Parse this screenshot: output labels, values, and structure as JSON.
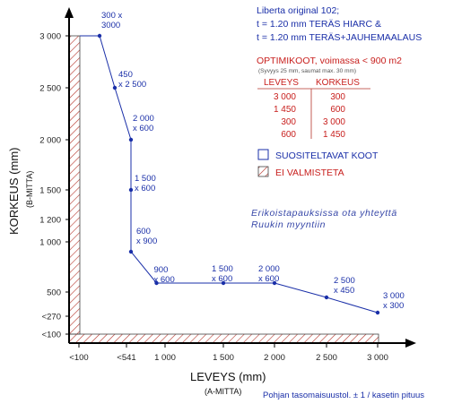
{
  "chart_data": {
    "type": "line",
    "xlabel": "LEVEYS (mm)",
    "xlabel_sub": "(A-MITTA)",
    "ylabel": "KORKEUS (mm)",
    "ylabel_sub": "(B-MITTA)",
    "x_ticks": [
      "<100",
      "<541",
      "1 000",
      "1 500",
      "2 000",
      "2 500",
      "3 000"
    ],
    "y_ticks": [
      "3 000",
      "2 500",
      "2 000",
      "1 500",
      "1 200",
      "1 000",
      "500",
      "<270",
      "<100"
    ],
    "points": [
      {
        "x": 300,
        "y": 3000,
        "label_line1": "300 x",
        "label_line2": "3000"
      },
      {
        "x": 450,
        "y": 2500,
        "label_line1": "450",
        "label_line2": "x 2 500"
      },
      {
        "x": 600,
        "y": 2000,
        "label_line1": "2 000",
        "label_line2": "x 600"
      },
      {
        "x": 600,
        "y": 1500,
        "label_line1": "1 500",
        "label_line2": "x 600"
      },
      {
        "x": 600,
        "y": 900,
        "label_line1": "600",
        "label_line2": "x 900"
      },
      {
        "x": 900,
        "y": 600,
        "label_line1": "900",
        "label_line2": "x 600"
      },
      {
        "x": 1500,
        "y": 600,
        "label_line1": "1 500",
        "label_line2": "x 600"
      },
      {
        "x": 2000,
        "y": 600,
        "label_line1": "2 000",
        "label_line2": "x 600"
      },
      {
        "x": 2500,
        "y": 450,
        "label_line1": "2 500",
        "label_line2": "x 450"
      },
      {
        "x": 3000,
        "y": 300,
        "label_line1": "3 000",
        "label_line2": "x 300"
      }
    ],
    "series_color": "#1a2fa8",
    "hatch_color": "#b5342a"
  },
  "info": {
    "line1": "Liberta original 102;",
    "line2": "t = 1.20 mm TERÄS HIARC &",
    "line3": "t = 1.20 mm TERÄS+JAUHEMAALAUS"
  },
  "optimal": {
    "title": "OPTIMIKOOT, voimassa < 900 m2",
    "subtitle": "(Syvyys 25 mm, saumat max. 30 mm)",
    "col1": "LEVEYS",
    "col2": "KORKEUS",
    "rows": [
      {
        "w": "3 000",
        "h": "300"
      },
      {
        "w": "1 450",
        "h": "600"
      },
      {
        "w": "300",
        "h": "3 000"
      },
      {
        "w": "600",
        "h": "1 450"
      }
    ]
  },
  "legend": {
    "recommended": "SUOSITELTAVAT KOOT",
    "not_made": "EI VALMISTETA"
  },
  "special_note": {
    "line1": "Erikoistapauksissa ota yhteyttä",
    "line2": "Ruukin myyntiin"
  },
  "footer": "Pohjan tasomaisuustol. ± 1 / kasetin pituus"
}
